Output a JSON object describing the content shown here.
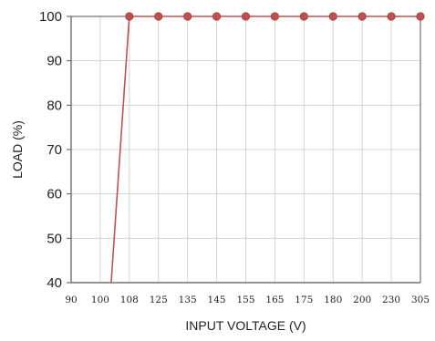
{
  "chart_data": {
    "type": "line",
    "title": "",
    "xlabel": "INPUT VOLTAGE (V)",
    "ylabel": "LOAD (%)",
    "x_scale": "categorical",
    "categories": [
      "90",
      "100",
      "108",
      "125",
      "135",
      "145",
      "155",
      "165",
      "175",
      "180",
      "200",
      "230",
      "305"
    ],
    "yticks": [
      40,
      50,
      60,
      70,
      80,
      90,
      100
    ],
    "ylim": [
      40,
      100
    ],
    "grid": true,
    "legend": "none",
    "series": [
      {
        "color": "#c0504d",
        "points": [
          {
            "x": "100",
            "y": 40
          },
          {
            "x": "108",
            "y": 100
          },
          {
            "x": "125",
            "y": 100
          },
          {
            "x": "135",
            "y": 100
          },
          {
            "x": "145",
            "y": 100
          },
          {
            "x": "155",
            "y": 100
          },
          {
            "x": "165",
            "y": 100
          },
          {
            "x": "175",
            "y": 100
          },
          {
            "x": "180",
            "y": 100
          },
          {
            "x": "200",
            "y": 100
          },
          {
            "x": "230",
            "y": 100
          },
          {
            "x": "305",
            "y": 100
          }
        ],
        "markers": [
          "108",
          "125",
          "135",
          "145",
          "155",
          "165",
          "175",
          "180",
          "200",
          "230",
          "305"
        ]
      }
    ]
  }
}
